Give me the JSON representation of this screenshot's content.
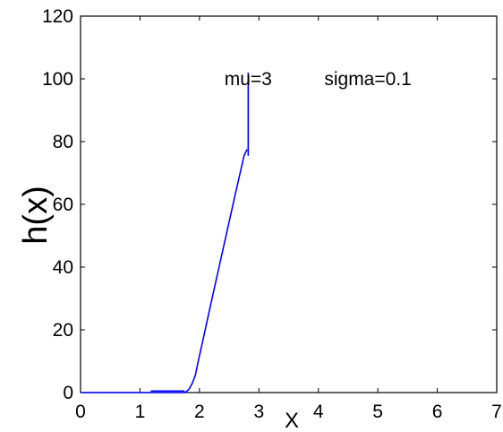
{
  "chart_data": {
    "type": "line",
    "xlabel": "X",
    "ylabel": "h(x)",
    "xlim": [
      0,
      7
    ],
    "ylim": [
      0,
      120
    ],
    "xticks": [
      "0",
      "1",
      "2",
      "3",
      "4",
      "5",
      "6",
      "7"
    ],
    "yticks": [
      "0",
      "20",
      "40",
      "60",
      "80",
      "100",
      "120"
    ],
    "grid": false,
    "legend": "none",
    "annotations": [
      {
        "text": "mu=3",
        "x": 2.42,
        "y": 98
      },
      {
        "text": "sigma=0.1",
        "x": 4.1,
        "y": 98
      }
    ],
    "series": [
      {
        "color": "#0000ff",
        "x": [
          0,
          1.75,
          1.78,
          1.83,
          1.88,
          1.93,
          1.98,
          2.05,
          2.2,
          2.4,
          2.6,
          2.75,
          2.8
        ],
        "y": [
          0,
          0,
          0.3,
          1.2,
          3.0,
          5.5,
          10.0,
          16.0,
          29.0,
          46.0,
          63.0,
          75.5,
          77.5
        ]
      },
      {
        "color": "#0000ff",
        "x": [
          1.18,
          1.75
        ],
        "y": [
          0.5,
          0.5
        ]
      },
      {
        "color": "#0000ff",
        "x": [
          2.82,
          2.82
        ],
        "y": [
          75.5,
          102
        ]
      }
    ]
  }
}
